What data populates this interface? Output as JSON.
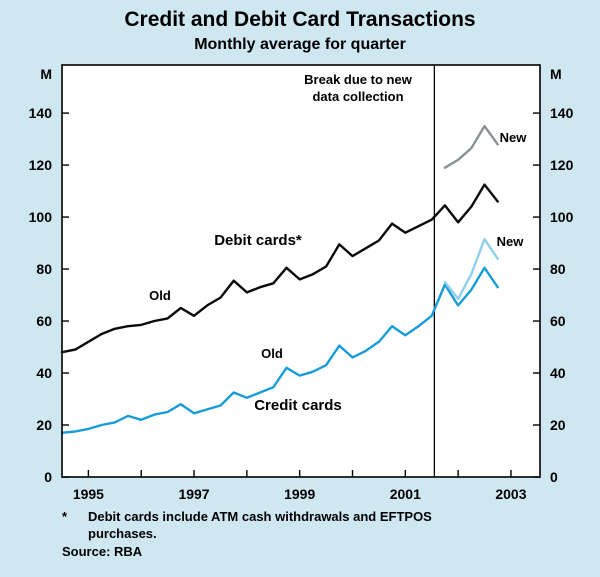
{
  "title": "Credit and Debit Card Transactions",
  "subtitle": "Monthly average for quarter",
  "axis": {
    "unit_left": "M",
    "unit_right": "M"
  },
  "annotations": {
    "break_note_line1": "Break due to new",
    "break_note_line2": "data collection",
    "debit_series_label": "Debit cards*",
    "credit_series_label": "Credit cards",
    "debit_old_label": "Old",
    "credit_old_label": "Old",
    "debit_new_label": "New",
    "credit_new_label": "New"
  },
  "footnote": {
    "marker": "*",
    "line1": "Debit cards include ATM cash withdrawals and EFTPOS",
    "line2": "purchases.",
    "source": "Source: RBA"
  },
  "colors": {
    "background": "#cfe7f1",
    "plot_background": "#ffffff",
    "frame": "#000000",
    "debit_old": "#0a0a0a",
    "debit_new": "#8a9096",
    "credit_old": "#189cd8",
    "credit_new": "#90cfe9",
    "break_line": "#000000"
  },
  "chart_data": {
    "type": "line",
    "title": "Credit and Debit Card Transactions",
    "subtitle": "Monthly average for quarter",
    "xlabel": "",
    "ylabel": "M",
    "unit": "M",
    "grid": false,
    "legend_position": "inline-annotations",
    "xlim": [
      1994.5,
      2003.55
    ],
    "ylim": [
      0,
      158.5
    ],
    "y_ticks": [
      0,
      20,
      40,
      60,
      80,
      100,
      120,
      140
    ],
    "x_ticks": [
      1995,
      1996,
      1997,
      1998,
      1999,
      2000,
      2001,
      2002,
      2003
    ],
    "x_tick_labels": [
      "1995",
      "1997",
      "1999",
      "2001",
      "2003"
    ],
    "x_tick_label_positions": [
      1995,
      1997,
      1999,
      2001,
      2003
    ],
    "break_x": 2001.55,
    "series": [
      {
        "name": "Debit cards (old)",
        "slug": "debit-old",
        "color_key": "debit_old",
        "x_start": 1994.5,
        "x_step": 0.25,
        "values": [
          48,
          49,
          52,
          55,
          57,
          58,
          58.5,
          60,
          61,
          65,
          62,
          66,
          69,
          75.5,
          71,
          73,
          74.5,
          80.5,
          76,
          78,
          81,
          89.5,
          85,
          88,
          91,
          97.5,
          94,
          96.5,
          99,
          104.5,
          98,
          104,
          112.5,
          106
        ]
      },
      {
        "name": "Debit cards (new)",
        "slug": "debit-new",
        "color_key": "debit_new",
        "x_start": 2001.75,
        "x_step": 0.25,
        "values": [
          119,
          122,
          126.5,
          135,
          128
        ]
      },
      {
        "name": "Credit cards (old)",
        "slug": "credit-old",
        "color_key": "credit_old",
        "x_start": 1994.5,
        "x_step": 0.25,
        "values": [
          17,
          17.5,
          18.5,
          20,
          21,
          23.5,
          22,
          24,
          25,
          28,
          24.5,
          26,
          27.5,
          32.5,
          30.5,
          32.5,
          34.5,
          42,
          39,
          40.5,
          43,
          50.5,
          46,
          48.5,
          52,
          58,
          54.5,
          58,
          62,
          74,
          66,
          72,
          80.5,
          73
        ]
      },
      {
        "name": "Credit cards (new)",
        "slug": "credit-new",
        "color_key": "credit_new",
        "x_start": 2001.75,
        "x_step": 0.25,
        "values": [
          75,
          68.5,
          78,
          91.5,
          84
        ]
      }
    ]
  }
}
